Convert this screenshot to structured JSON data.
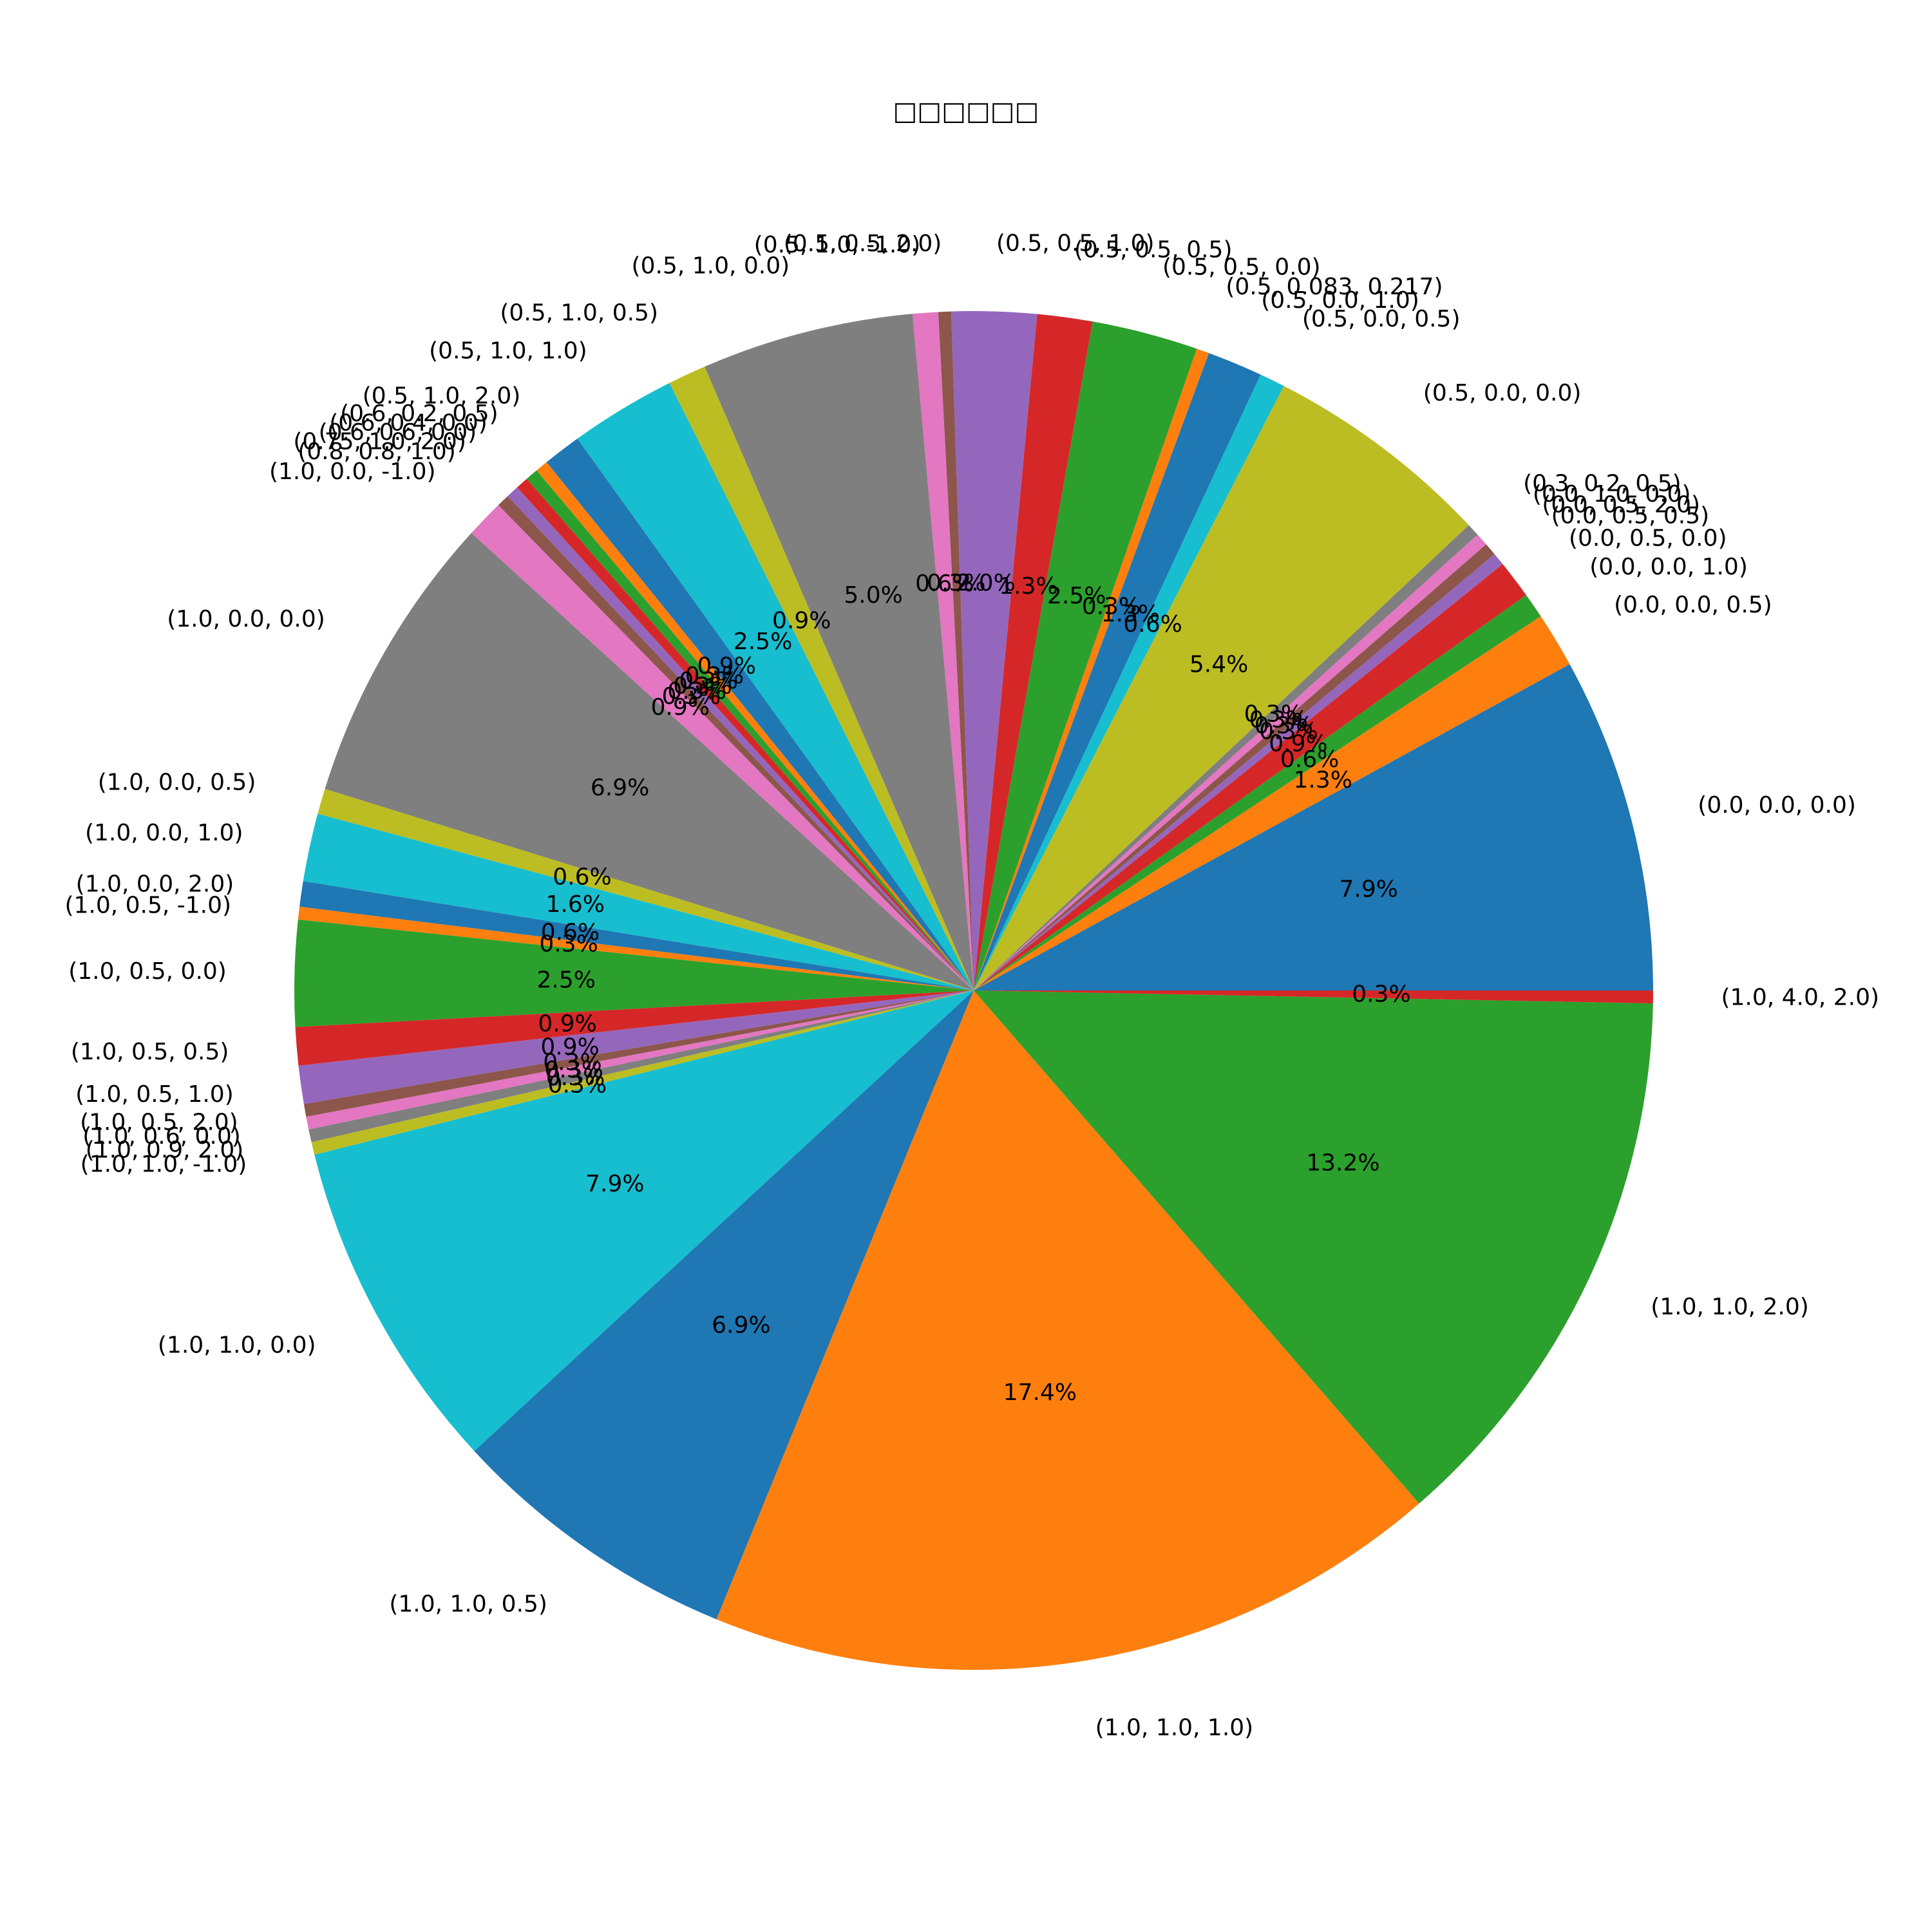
{
  "chart_data": {
    "type": "pie",
    "title": "□□□□□□",
    "start_angle_deg": 0,
    "direction": "counterclockwise",
    "palette": [
      "#1f77b4",
      "#ff7f0e",
      "#2ca02c",
      "#d62728",
      "#9467bd",
      "#8c564b",
      "#e377c2",
      "#7f7f7f",
      "#bcbd22",
      "#17becf"
    ],
    "slices": [
      {
        "label": "(0.0, 0.0, 0.0)",
        "value": 7.9,
        "pct": "7.9%"
      },
      {
        "label": "(0.0, 0.0, 0.5)",
        "value": 1.3,
        "pct": "1.3%"
      },
      {
        "label": "(0.0, 0.0, 1.0)",
        "value": 0.6,
        "pct": "0.6%"
      },
      {
        "label": "(0.0, 0.5, 0.0)",
        "value": 0.9,
        "pct": "0.9%"
      },
      {
        "label": "(0.0, 0.5, 0.5)",
        "value": 0.3,
        "pct": "0.3%"
      },
      {
        "label": "(0.0, 0.5, 2.0)",
        "value": 0.3,
        "pct": "0.3%"
      },
      {
        "label": "(0.0, 1.0, 0.0)",
        "value": 0.3,
        "pct": "0.3%"
      },
      {
        "label": "(0.3, 0.2, 0.5)",
        "value": 0.3,
        "pct": "0.3%"
      },
      {
        "label": "(0.5, 0.0, 0.0)",
        "value": 5.4,
        "pct": "5.4%"
      },
      {
        "label": "(0.5, 0.0, 0.5)",
        "value": 0.6,
        "pct": "0.6%"
      },
      {
        "label": "(0.5, 0.0, 1.0)",
        "value": 1.3,
        "pct": "1.3%"
      },
      {
        "label": "(0.5, 0.083, 0.217)",
        "value": 0.3,
        "pct": "0.3%"
      },
      {
        "label": "(0.5, 0.5, 0.0)",
        "value": 2.5,
        "pct": "2.5%"
      },
      {
        "label": "(0.5, 0.5, 0.5)",
        "value": 1.3,
        "pct": "1.3%"
      },
      {
        "label": "(0.5, 0.5, 1.0)",
        "value": 2.0,
        "pct": "2.0%"
      },
      {
        "label": "(0.5, 0.5, 2.0)",
        "value": 0.3,
        "pct": "0.3%"
      },
      {
        "label": "(0.5, 1.0, -1.0)",
        "value": 0.6,
        "pct": "0.6%"
      },
      {
        "label": "(0.5, 1.0, 0.0)",
        "value": 5.0,
        "pct": "5.0%"
      },
      {
        "label": "(0.5, 1.0, 0.5)",
        "value": 0.9,
        "pct": "0.9%"
      },
      {
        "label": "(0.5, 1.0, 1.0)",
        "value": 2.5,
        "pct": "2.5%"
      },
      {
        "label": "(0.5, 1.0, 2.0)",
        "value": 0.9,
        "pct": "0.9%"
      },
      {
        "label": "(0.6, 0.2, 0.5)",
        "value": 0.3,
        "pct": "0.3%"
      },
      {
        "label": "(0.6, 0.4, 0.0)",
        "value": 0.3,
        "pct": "0.3%"
      },
      {
        "label": "(0.6, 0.6, 0.0)",
        "value": 0.3,
        "pct": "0.3%"
      },
      {
        "label": "(0.75, 1.0, 2.0)",
        "value": 0.3,
        "pct": "0.3%"
      },
      {
        "label": "(0.8, 0.8, 1.0)",
        "value": 0.3,
        "pct": "0.3%"
      },
      {
        "label": "(1.0, 0.0, -1.0)",
        "value": 0.9,
        "pct": "0.9%"
      },
      {
        "label": "(1.0, 0.0, 0.0)",
        "value": 6.9,
        "pct": "6.9%"
      },
      {
        "label": "(1.0, 0.0, 0.5)",
        "value": 0.6,
        "pct": "0.6%"
      },
      {
        "label": "(1.0, 0.0, 1.0)",
        "value": 1.6,
        "pct": "1.6%"
      },
      {
        "label": "(1.0, 0.0, 2.0)",
        "value": 0.6,
        "pct": "0.6%"
      },
      {
        "label": "(1.0, 0.5, -1.0)",
        "value": 0.3,
        "pct": "0.3%"
      },
      {
        "label": "(1.0, 0.5, 0.0)",
        "value": 2.5,
        "pct": "2.5%"
      },
      {
        "label": "(1.0, 0.5, 0.5)",
        "value": 0.9,
        "pct": "0.9%"
      },
      {
        "label": "(1.0, 0.5, 1.0)",
        "value": 0.9,
        "pct": "0.9%"
      },
      {
        "label": "(1.0, 0.5, 2.0)",
        "value": 0.3,
        "pct": "0.3%"
      },
      {
        "label": "(1.0, 0.6, 0.0)",
        "value": 0.3,
        "pct": "0.3%"
      },
      {
        "label": "(1.0, 0.9, 2.0)",
        "value": 0.3,
        "pct": "0.3%"
      },
      {
        "label": "(1.0, 1.0, -1.0)",
        "value": 0.3,
        "pct": "0.3%"
      },
      {
        "label": "(1.0, 1.0, 0.0)",
        "value": 7.9,
        "pct": "7.9%"
      },
      {
        "label": "(1.0, 1.0, 0.5)",
        "value": 6.9,
        "pct": "6.9%"
      },
      {
        "label": "(1.0, 1.0, 1.0)",
        "value": 17.4,
        "pct": "17.4%"
      },
      {
        "label": "(1.0, 1.0, 2.0)",
        "value": 13.2,
        "pct": "13.2%"
      },
      {
        "label": "(1.0, 4.0, 2.0)",
        "value": 0.3,
        "pct": "0.3%"
      }
    ]
  }
}
